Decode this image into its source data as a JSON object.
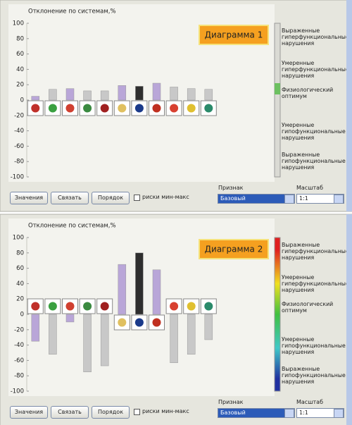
{
  "chart_data": [
    {
      "type": "bar",
      "title": "Отклонение по системам,%",
      "badge": "Диаграмма 1",
      "categories": [
        null,
        null,
        null,
        null,
        null,
        null,
        null,
        null,
        null,
        null,
        null
      ],
      "values": [
        5,
        14,
        15,
        12,
        12,
        19,
        18,
        22,
        17,
        15,
        14
      ],
      "colors": [
        "#b9a6d8",
        "#c8c8c8",
        "#b9a6d8",
        "#c8c8c8",
        "#c8c8c8",
        "#b9a6d8",
        "#2e2e2e",
        "#b9a6d8",
        "#c8c8c8",
        "#c8c8c8",
        "#c8c8c8"
      ],
      "ylim": [
        -100,
        100
      ],
      "yticks": [
        -100,
        -80,
        -60,
        -40,
        -20,
        0,
        20,
        40,
        60,
        80,
        100
      ],
      "scale_labels": [
        "Выраженные гиперфункциональные нарушения",
        "Умеренные гиперфункциональные нарушения",
        "Физиологический оптимум",
        "Умеренные гипофункциональные нарушения",
        "Выраженные гипофункциональные нарушения"
      ]
    },
    {
      "type": "bar",
      "title": "Отклонение по системам,%",
      "badge": "Диаграмма 2",
      "categories": [
        null,
        null,
        null,
        null,
        null,
        null,
        null,
        null,
        null,
        null,
        null
      ],
      "values": [
        -35,
        -52,
        -10,
        -75,
        -67,
        65,
        80,
        58,
        -63,
        -52,
        -33
      ],
      "colors": [
        "#b9a6d8",
        "#c8c8c8",
        "#b9a6d8",
        "#c8c8c8",
        "#c8c8c8",
        "#b9a6d8",
        "#2e2e2e",
        "#b9a6d8",
        "#c8c8c8",
        "#c8c8c8",
        "#c8c8c8"
      ],
      "ylim": [
        -100,
        100
      ],
      "yticks": [
        -100,
        -80,
        -60,
        -40,
        -20,
        0,
        20,
        40,
        60,
        80,
        100
      ],
      "scale_labels": [
        "Выраженные гиперфункциональные нарушения",
        "Умеренные гиперфункциональные нарушения",
        "Физиологический оптимум",
        "Умеренные гипофункциональные нарушения",
        "Выраженные гипофункциональные нарушения"
      ]
    }
  ],
  "controls": [
    {
      "buttons": [
        "Значения",
        "Связать",
        "Порядок"
      ],
      "checkbox": "риски мин-макс",
      "feature_label": "Признак",
      "feature_value": "Базовый",
      "scale_label": "Масштаб",
      "scale_value": "1:1"
    },
    {
      "buttons": [
        "Значения",
        "Связать",
        "Порядок"
      ],
      "checkbox": "риски мин-макс",
      "feature_label": "Признак",
      "feature_value": "Базовый",
      "scale_label": "Масштаб",
      "scale_value": "1:1"
    }
  ]
}
